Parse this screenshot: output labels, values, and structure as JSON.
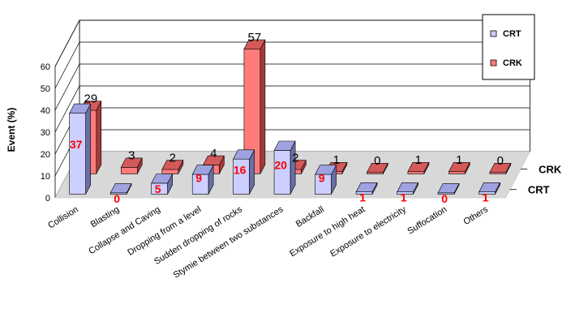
{
  "colors": {
    "crt_front": "#cccfff",
    "crt_side": "#6a6fa6",
    "crt_top": "#9ea3e0",
    "crk_front": "#ff7b7b",
    "crk_side": "#a33a3a",
    "crk_top": "#d45a5a",
    "floor": "#d8d8d8",
    "grid": "#000000",
    "crt_label": "#ff0000",
    "crk_label": "#000000"
  },
  "chart_data": {
    "type": "bar",
    "variant": "3d-depth",
    "categories": [
      "Collision",
      "Blasting",
      "Collapse and Caving",
      "Dropping from a level",
      "Sudden dropping of rocks",
      "Stymie between two substances",
      "Backfall",
      "Exposure to high heat",
      "Exposure to electricity",
      "Suffocation",
      "Others"
    ],
    "series": [
      {
        "name": "CRT",
        "values": [
          37,
          0,
          5,
          9,
          16,
          20,
          9,
          1,
          1,
          0,
          1
        ]
      },
      {
        "name": "CRK",
        "values": [
          29,
          3,
          2,
          4,
          57,
          2,
          1,
          0,
          1,
          1,
          0
        ]
      }
    ],
    "ylabel": "Event (%)",
    "yticks": [
      "0",
      "10",
      "20",
      "30",
      "40",
      "50",
      "60"
    ],
    "ylim": [
      0,
      60
    ],
    "depth_labels": [
      "CRT",
      "CRK"
    ],
    "legend": {
      "position": "top-right",
      "entries": [
        "CRT",
        "CRK"
      ]
    },
    "grid": true
  }
}
